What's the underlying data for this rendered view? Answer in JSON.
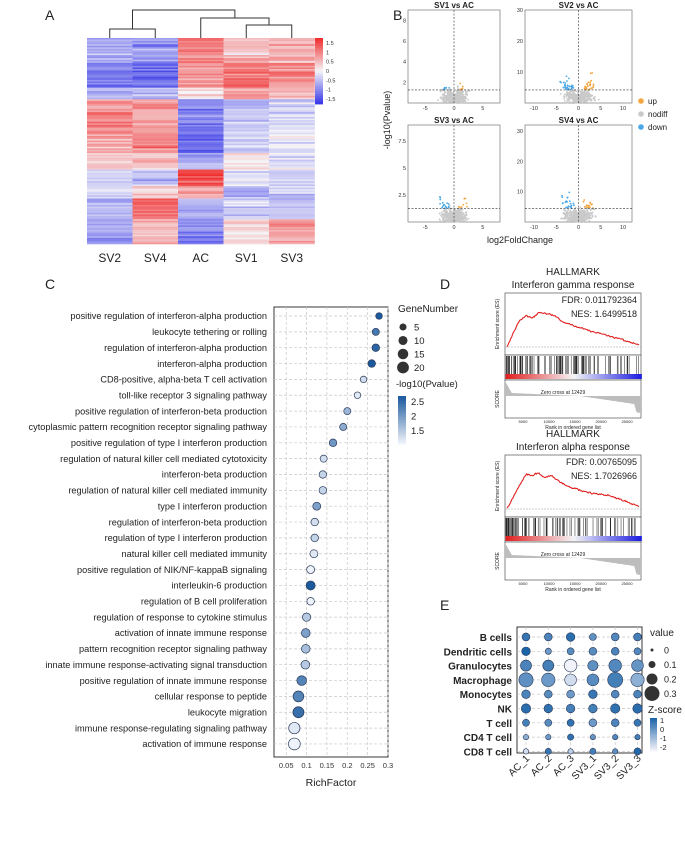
{
  "panels": {
    "a": "A",
    "b": "B",
    "c": "C",
    "d": "D",
    "e": "E"
  },
  "colors": {
    "red": "#f03030",
    "white": "#f5f5f8",
    "blue": "#3a3ae8",
    "up": "#f5a640",
    "down": "#4aa8e8",
    "nodiff": "#c9c9c9"
  },
  "chart_data": [
    {
      "id": "A",
      "type": "heatmap",
      "columns": [
        "SV2",
        "SV4",
        "AC",
        "SV1",
        "SV3"
      ],
      "colorbar": {
        "ticks": [
          "1.5",
          "1",
          "0.5",
          "0",
          "-0.5",
          "-1",
          "-1.5"
        ],
        "range": [
          -1.5,
          1.5
        ]
      },
      "block_rows": [
        [
          -0.6,
          -0.8,
          0.9,
          0.4,
          0.5
        ],
        [
          -1.0,
          -1.1,
          0.7,
          1.0,
          0.8
        ],
        [
          -0.5,
          -0.4,
          0.2,
          0.6,
          0.3
        ],
        [
          0.8,
          0.6,
          -0.9,
          -0.4,
          -0.2
        ],
        [
          0.6,
          0.8,
          -1.1,
          -0.3,
          -0.1
        ],
        [
          0.3,
          0.4,
          -0.6,
          0.1,
          -0.2
        ],
        [
          -0.3,
          -0.5,
          1.3,
          -0.2,
          -0.3
        ],
        [
          -0.2,
          0.3,
          0.6,
          -0.6,
          -0.3
        ],
        [
          -0.5,
          1.1,
          -0.5,
          -0.3,
          -0.4
        ],
        [
          -0.7,
          0.5,
          -0.9,
          0.2,
          0.6
        ]
      ],
      "row_weights": [
        3,
        3,
        1.4,
        3.5,
        3,
        2,
        2,
        1.5,
        2.5,
        3
      ]
    },
    {
      "id": "B",
      "type": "scatter",
      "ylabel": "-log10(Pvalue)",
      "xlabel": "log2FoldChange",
      "legend": [
        "up",
        "nodiff",
        "down"
      ],
      "subplots": [
        {
          "title": "SV1 vs AC",
          "xticks": [
            "-5",
            "0",
            "5"
          ],
          "yticks": [
            "2",
            "4",
            "6",
            "8"
          ],
          "xlim": [
            -8,
            8
          ],
          "ylim": [
            0,
            9
          ]
        },
        {
          "title": "SV2 vs AC",
          "xticks": [
            "-10",
            "-5",
            "0",
            "5",
            "10"
          ],
          "yticks": [
            "10",
            "20",
            "30"
          ],
          "xlim": [
            -12,
            12
          ],
          "ylim": [
            0,
            30
          ]
        },
        {
          "title": "SV3 vs AC",
          "xticks": [
            "-5",
            "0",
            "5"
          ],
          "yticks": [
            "2.5",
            "5",
            "7.5"
          ],
          "xlim": [
            -8,
            8
          ],
          "ylim": [
            0,
            9
          ]
        },
        {
          "title": "SV4 vs AC",
          "xticks": [
            "-10",
            "-5",
            "0",
            "5",
            "10"
          ],
          "yticks": [
            "10",
            "20",
            "30"
          ],
          "xlim": [
            -12,
            12
          ],
          "ylim": [
            0,
            32
          ]
        }
      ]
    },
    {
      "id": "C",
      "type": "scatter",
      "xlabel": "RichFactor",
      "xticks": [
        "0.05",
        "0.1",
        "0.15",
        "0.2",
        "0.25",
        "0.3"
      ],
      "xlim": [
        0.02,
        0.3
      ],
      "legend_size_title": "GeneNumber",
      "legend_sizes": [
        "5",
        "10",
        "15",
        "20"
      ],
      "legend_color_title": "-log10(Pvalue)",
      "legend_color_ticks": [
        "2.5",
        "2",
        "1.5"
      ],
      "terms": [
        "positive regulation of interferon-alpha production",
        "leukocyte tethering or rolling",
        "regulation of interferon-alpha production",
        "interferon-alpha production",
        "CD8-positive, alpha-beta T cell activation",
        "toll-like receptor 3 signaling pathway",
        "positive regulation of interferon-beta production",
        "cytoplasmic pattern recognition receptor signaling pathway",
        "positive regulation of type I interferon production",
        "regulation of natural killer cell mediated cytotoxicity",
        "interferon-beta production",
        "regulation of natural killer cell mediated immunity",
        "type I interferon production",
        "regulation of interferon-beta production",
        "regulation of type I interferon production",
        "natural killer cell mediated immunity",
        "positive regulation of NIK/NF-kappaB signaling",
        "interleukin-6 production",
        "regulation of B cell proliferation",
        "regulation of response to cytokine stimulus",
        "activation of innate immune response",
        "pattern recognition receptor signaling pathway",
        "innate immune response-activating signal transduction",
        "positive regulation of innate immune response",
        "cellular response to peptide",
        "leukocyte migration",
        "immune response-regulating signaling pathway",
        "activation of immune response"
      ],
      "richfactor": [
        0.278,
        0.27,
        0.27,
        0.26,
        0.24,
        0.225,
        0.2,
        0.19,
        0.165,
        0.142,
        0.14,
        0.14,
        0.125,
        0.12,
        0.12,
        0.118,
        0.11,
        0.11,
        0.11,
        0.1,
        0.098,
        0.098,
        0.097,
        0.088,
        0.08,
        0.08,
        0.07,
        0.07
      ],
      "gene_number": [
        4,
        5,
        6,
        6,
        4,
        4,
        5,
        5,
        6,
        5,
        6,
        6,
        7,
        6,
        6,
        7,
        7,
        10,
        6,
        8,
        9,
        9,
        9,
        12,
        16,
        17,
        18,
        20
      ],
      "log10p": [
        2.7,
        2.4,
        2.6,
        2.7,
        1.4,
        1.3,
        1.8,
        1.9,
        2.1,
        1.4,
        1.5,
        1.5,
        2.0,
        1.4,
        1.5,
        1.3,
        1.2,
        2.7,
        1.2,
        1.6,
        2.0,
        1.7,
        1.6,
        2.3,
        2.3,
        2.5,
        1.3,
        1.2
      ]
    },
    {
      "id": "D",
      "type": "line",
      "plots": [
        {
          "title1": "HALLMARK",
          "title2": "Interferon gamma response",
          "fdr": "FDR: 0.011792364",
          "nes": "NES: 1.6499518",
          "zero_cross": "Zero cross at 12429",
          "es": [
            0,
            0.3,
            0.55,
            0.65,
            0.6,
            0.72,
            0.7,
            0.68,
            0.62,
            0.5,
            0.48,
            0.42,
            0.4,
            0.35,
            0.3,
            0.28,
            0.24,
            0.2,
            0.18,
            0.12,
            0.08,
            0.05
          ]
        },
        {
          "title1": "HALLMARK",
          "title2": "Interferon alpha response",
          "fdr": "FDR: 0.00765095",
          "nes": "NES: 1.7026966",
          "zero_cross": "Zero cross at 12429",
          "es": [
            0,
            0.25,
            0.5,
            0.72,
            0.7,
            0.75,
            0.65,
            0.7,
            0.6,
            0.52,
            0.45,
            0.42,
            0.38,
            0.35,
            0.32,
            0.3,
            0.28,
            0.25,
            0.2,
            0.15,
            0.1,
            0.05
          ]
        }
      ],
      "ylabel_es": "Enrichment score (ES)",
      "ylabel_score": "SCORE",
      "xlabel": "Rank in ordered gene list",
      "xticks": [
        "5000",
        "10000",
        "15000",
        "20000",
        "25000"
      ]
    },
    {
      "id": "E",
      "type": "scatter",
      "rows": [
        "B cells",
        "Dendritic cells",
        "Granulocytes",
        "Macrophage",
        "Monocytes",
        "NK",
        "T cell",
        "CD4 T cell",
        "CD8 T cell"
      ],
      "columns": [
        "AC_1",
        "AC_2",
        "AC_3",
        "SV3_1",
        "SV3_2",
        "SV3_3"
      ],
      "legend_size_title": "value",
      "legend_sizes": [
        "0",
        "0.1",
        "0.2",
        "0.3"
      ],
      "legend_color_title": "Z-score",
      "legend_color_ticks": [
        "1",
        "0",
        "-1",
        "-2"
      ],
      "values": [
        [
          0.12,
          0.12,
          0.14,
          0.1,
          0.12,
          0.12
        ],
        [
          0.14,
          0.08,
          0.1,
          0.12,
          0.12,
          0.1
        ],
        [
          0.2,
          0.2,
          0.24,
          0.18,
          0.24,
          0.22
        ],
        [
          0.28,
          0.26,
          0.22,
          0.22,
          0.3,
          0.26
        ],
        [
          0.14,
          0.12,
          0.12,
          0.14,
          0.12,
          0.12
        ],
        [
          0.16,
          0.14,
          0.14,
          0.14,
          0.16,
          0.16
        ],
        [
          0.1,
          0.1,
          0.1,
          0.12,
          0.12,
          0.1
        ],
        [
          0.06,
          0.06,
          0.08,
          0.06,
          0.06,
          0.06
        ],
        [
          0.06,
          0.08,
          0.06,
          0.08,
          0.06,
          0.1
        ]
      ],
      "zscore": [
        [
          0.8,
          0.5,
          1.0,
          0.2,
          0.4,
          0.6
        ],
        [
          1.2,
          0.0,
          0.3,
          0.3,
          0.5,
          0.4
        ],
        [
          0.5,
          0.6,
          -2.0,
          0.2,
          0.4,
          0.1
        ],
        [
          0.2,
          0.0,
          -1.5,
          0.3,
          0.6,
          -0.5
        ],
        [
          0.5,
          0.3,
          0.0,
          0.8,
          0.4,
          0.5
        ],
        [
          1.0,
          0.9,
          0.6,
          0.6,
          0.9,
          1.0
        ],
        [
          0.6,
          0.3,
          0.9,
          0.0,
          0.5,
          0.8
        ],
        [
          -0.5,
          0.0,
          0.9,
          0.1,
          0.4,
          0.6
        ],
        [
          -1.5,
          0.8,
          -1.2,
          0.6,
          0.2,
          1.1
        ]
      ]
    }
  ]
}
